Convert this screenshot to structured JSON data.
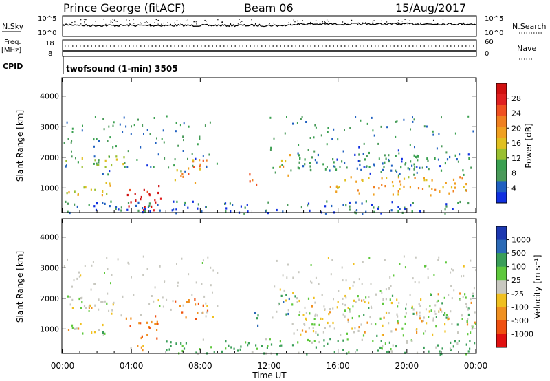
{
  "header": {
    "site": "Prince George (fitACF)",
    "beam": "Beam 06",
    "date": "15/Aug/2017"
  },
  "top_panel": {
    "nsky_label": "N.Sky",
    "nsearch_label": "N.Search",
    "sky_scale_top": "10^5",
    "sky_scale_bottom": "10^0",
    "freq_label_1": "Freq.",
    "freq_label_2": "[MHz]",
    "freq_tick_top": "18",
    "freq_tick_bottom": "8",
    "nave_label": "Nave",
    "nave_tick_top": "60",
    "nave_tick_bottom": "0",
    "cpid_label": "CPID",
    "cpid_text": "twofsound (1-min) 3505"
  },
  "chart_data": [
    {
      "type": "heatmap",
      "name": "power",
      "ylabel": "Slant Range [km]",
      "ylim": [
        200,
        4600
      ],
      "yticks": [
        "1000",
        "2000",
        "3000",
        "4000"
      ],
      "x": [
        "00:00",
        "04:00",
        "08:00",
        "12:00",
        "16:00",
        "20:00",
        "00:00"
      ],
      "colorbar": {
        "label": "Power [dB]",
        "ticks": [
          "4",
          "8",
          "12",
          "16",
          "20",
          "24",
          "28"
        ],
        "colors": [
          "#1030e0",
          "#2060c0",
          "#4a9a5a",
          "#3aa050",
          "#9ac030",
          "#e0c020",
          "#f0a020",
          "#f08020",
          "#f05020",
          "#e02020",
          "#d01010"
        ]
      },
      "regions": [
        {
          "t": [
            0.0,
            3.6
          ],
          "r": [
            1700,
            2100
          ],
          "power": 12
        },
        {
          "t": [
            0.0,
            3.0
          ],
          "r": [
            800,
            1200
          ],
          "power": 16
        },
        {
          "t": [
            3.6,
            5.7
          ],
          "r": [
            300,
            1100
          ],
          "power": 28
        },
        {
          "t": [
            6.5,
            8.4
          ],
          "r": [
            1200,
            2000
          ],
          "power": 20
        },
        {
          "t": [
            10.8,
            11.4
          ],
          "r": [
            1100,
            1600
          ],
          "power": 24
        },
        {
          "t": [
            12.5,
            13.2
          ],
          "r": [
            1400,
            2200
          ],
          "power": 18
        },
        {
          "t": [
            13.3,
            24.0
          ],
          "r": [
            1600,
            2200
          ],
          "power": 8
        },
        {
          "t": [
            15.5,
            23.5
          ],
          "r": [
            800,
            1400
          ],
          "power": 18
        },
        {
          "t": [
            0.0,
            24.0
          ],
          "r": [
            200,
            600
          ],
          "power": 6
        }
      ]
    },
    {
      "type": "heatmap",
      "name": "velocity",
      "ylabel": "Slant Range [km]",
      "ylim": [
        200,
        4600
      ],
      "yticks": [
        "1000",
        "2000",
        "3000",
        "4000"
      ],
      "xlabel": "Time UT",
      "x": [
        "00:00",
        "04:00",
        "08:00",
        "12:00",
        "16:00",
        "20:00",
        "00:00"
      ],
      "colorbar": {
        "label": "Velocity [m s⁻¹]",
        "ticks": [
          "1000",
          "500",
          "100",
          "25",
          "-25",
          "-100",
          "-500",
          "-1000"
        ],
        "colors": [
          "#1c38b0",
          "#2b6ab6",
          "#3a9e58",
          "#5ec83c",
          "#c8c8c0",
          "#f0c020",
          "#f09020",
          "#f05010",
          "#e01010"
        ]
      },
      "regions": [
        {
          "t": [
            0.0,
            3.6
          ],
          "r": [
            1700,
            2100
          ],
          "velocity": 0
        },
        {
          "t": [
            0.0,
            3.0
          ],
          "r": [
            800,
            1200
          ],
          "velocity": 0
        },
        {
          "t": [
            3.6,
            5.5
          ],
          "r": [
            700,
            1500
          ],
          "velocity": -300
        },
        {
          "t": [
            6.5,
            8.4
          ],
          "r": [
            1300,
            2000
          ],
          "velocity": -300
        },
        {
          "t": [
            10.8,
            11.4
          ],
          "r": [
            1100,
            1600
          ],
          "velocity": 300
        },
        {
          "t": [
            12.5,
            13.2
          ],
          "r": [
            1400,
            2200
          ],
          "velocity": 300
        },
        {
          "t": [
            13.3,
            24.0
          ],
          "r": [
            800,
            2200
          ],
          "velocity": 0
        },
        {
          "t": [
            3.8,
            4.8
          ],
          "r": [
            200,
            600
          ],
          "velocity": -80
        },
        {
          "t": [
            6.0,
            24.0
          ],
          "r": [
            200,
            700
          ],
          "velocity": 80
        }
      ]
    }
  ]
}
